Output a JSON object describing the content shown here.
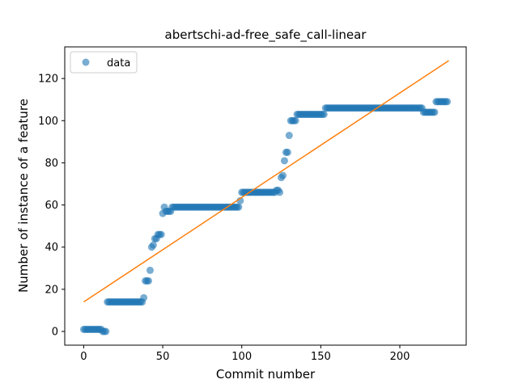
{
  "chart_data": {
    "type": "scatter",
    "title": "abertschi-ad-free_safe_call-linear",
    "xlabel": "Commit number",
    "ylabel": "Number of instance of a feature",
    "xlim": [
      -12,
      242
    ],
    "ylim": [
      -6.5,
      135
    ],
    "xticks": [
      0,
      50,
      100,
      150,
      200
    ],
    "yticks": [
      0,
      20,
      40,
      60,
      80,
      100,
      120
    ],
    "legend": {
      "position": "top-left",
      "entries": [
        "data"
      ]
    },
    "colors": {
      "data": "#1f77b4",
      "fit": "#ff7f0e"
    },
    "series": [
      {
        "name": "data",
        "kind": "scatter",
        "points": [
          [
            0,
            1
          ],
          [
            1,
            1
          ],
          [
            2,
            1
          ],
          [
            3,
            1
          ],
          [
            4,
            1
          ],
          [
            5,
            1
          ],
          [
            6,
            1
          ],
          [
            7,
            1
          ],
          [
            8,
            1
          ],
          [
            9,
            1
          ],
          [
            10,
            1
          ],
          [
            11,
            1
          ],
          [
            12,
            0
          ],
          [
            13,
            0
          ],
          [
            14,
            0
          ],
          [
            15,
            14
          ],
          [
            16,
            14
          ],
          [
            17,
            14
          ],
          [
            18,
            14
          ],
          [
            19,
            14
          ],
          [
            20,
            14
          ],
          [
            21,
            14
          ],
          [
            22,
            14
          ],
          [
            23,
            14
          ],
          [
            24,
            14
          ],
          [
            25,
            14
          ],
          [
            26,
            14
          ],
          [
            27,
            14
          ],
          [
            28,
            14
          ],
          [
            29,
            14
          ],
          [
            30,
            14
          ],
          [
            31,
            14
          ],
          [
            32,
            14
          ],
          [
            33,
            14
          ],
          [
            34,
            14
          ],
          [
            35,
            14
          ],
          [
            36,
            14
          ],
          [
            37,
            14
          ],
          [
            38,
            16
          ],
          [
            39,
            24
          ],
          [
            40,
            24
          ],
          [
            41,
            24
          ],
          [
            42,
            29
          ],
          [
            43,
            40
          ],
          [
            44,
            41
          ],
          [
            45,
            44
          ],
          [
            46,
            44
          ],
          [
            47,
            46
          ],
          [
            48,
            46
          ],
          [
            49,
            46
          ],
          [
            50,
            56
          ],
          [
            51,
            59
          ],
          [
            52,
            57
          ],
          [
            53,
            57
          ],
          [
            54,
            57
          ],
          [
            55,
            57
          ],
          [
            56,
            59
          ],
          [
            57,
            59
          ],
          [
            58,
            59
          ],
          [
            59,
            59
          ],
          [
            60,
            59
          ],
          [
            61,
            59
          ],
          [
            62,
            59
          ],
          [
            63,
            59
          ],
          [
            64,
            59
          ],
          [
            65,
            59
          ],
          [
            66,
            59
          ],
          [
            67,
            59
          ],
          [
            68,
            59
          ],
          [
            69,
            59
          ],
          [
            70,
            59
          ],
          [
            71,
            59
          ],
          [
            72,
            59
          ],
          [
            73,
            59
          ],
          [
            74,
            59
          ],
          [
            75,
            59
          ],
          [
            76,
            59
          ],
          [
            77,
            59
          ],
          [
            78,
            59
          ],
          [
            79,
            59
          ],
          [
            80,
            59
          ],
          [
            81,
            59
          ],
          [
            82,
            59
          ],
          [
            83,
            59
          ],
          [
            84,
            59
          ],
          [
            85,
            59
          ],
          [
            86,
            59
          ],
          [
            87,
            59
          ],
          [
            88,
            59
          ],
          [
            89,
            59
          ],
          [
            90,
            59
          ],
          [
            91,
            59
          ],
          [
            92,
            59
          ],
          [
            93,
            59
          ],
          [
            94,
            59
          ],
          [
            95,
            59
          ],
          [
            96,
            59
          ],
          [
            97,
            59
          ],
          [
            98,
            59
          ],
          [
            99,
            62
          ],
          [
            100,
            66
          ],
          [
            101,
            66
          ],
          [
            102,
            66
          ],
          [
            103,
            66
          ],
          [
            104,
            66
          ],
          [
            105,
            66
          ],
          [
            106,
            66
          ],
          [
            107,
            66
          ],
          [
            108,
            66
          ],
          [
            109,
            66
          ],
          [
            110,
            66
          ],
          [
            111,
            66
          ],
          [
            112,
            66
          ],
          [
            113,
            66
          ],
          [
            114,
            66
          ],
          [
            115,
            66
          ],
          [
            116,
            66
          ],
          [
            117,
            66
          ],
          [
            118,
            66
          ],
          [
            119,
            66
          ],
          [
            120,
            66
          ],
          [
            121,
            66
          ],
          [
            122,
            67
          ],
          [
            123,
            67
          ],
          [
            124,
            66
          ],
          [
            125,
            73
          ],
          [
            126,
            74
          ],
          [
            127,
            81
          ],
          [
            128,
            85
          ],
          [
            129,
            85
          ],
          [
            130,
            93
          ],
          [
            131,
            100
          ],
          [
            132,
            100
          ],
          [
            133,
            100
          ],
          [
            134,
            100
          ],
          [
            135,
            103
          ],
          [
            136,
            103
          ],
          [
            137,
            103
          ],
          [
            138,
            103
          ],
          [
            139,
            103
          ],
          [
            140,
            103
          ],
          [
            141,
            103
          ],
          [
            142,
            103
          ],
          [
            143,
            103
          ],
          [
            144,
            103
          ],
          [
            145,
            103
          ],
          [
            146,
            103
          ],
          [
            147,
            103
          ],
          [
            148,
            103
          ],
          [
            149,
            103
          ],
          [
            150,
            103
          ],
          [
            151,
            103
          ],
          [
            152,
            103
          ],
          [
            153,
            106
          ],
          [
            154,
            106
          ],
          [
            155,
            106
          ],
          [
            156,
            106
          ],
          [
            157,
            106
          ],
          [
            158,
            106
          ],
          [
            159,
            106
          ],
          [
            160,
            106
          ],
          [
            161,
            106
          ],
          [
            162,
            106
          ],
          [
            163,
            106
          ],
          [
            164,
            106
          ],
          [
            165,
            106
          ],
          [
            166,
            106
          ],
          [
            167,
            106
          ],
          [
            168,
            106
          ],
          [
            169,
            106
          ],
          [
            170,
            106
          ],
          [
            171,
            106
          ],
          [
            172,
            106
          ],
          [
            173,
            106
          ],
          [
            174,
            106
          ],
          [
            175,
            106
          ],
          [
            176,
            106
          ],
          [
            177,
            106
          ],
          [
            178,
            106
          ],
          [
            179,
            106
          ],
          [
            180,
            106
          ],
          [
            181,
            106
          ],
          [
            182,
            106
          ],
          [
            183,
            106
          ],
          [
            184,
            106
          ],
          [
            185,
            106
          ],
          [
            186,
            106
          ],
          [
            187,
            106
          ],
          [
            188,
            106
          ],
          [
            189,
            106
          ],
          [
            190,
            106
          ],
          [
            191,
            106
          ],
          [
            192,
            106
          ],
          [
            193,
            106
          ],
          [
            194,
            106
          ],
          [
            195,
            106
          ],
          [
            196,
            106
          ],
          [
            197,
            106
          ],
          [
            198,
            106
          ],
          [
            199,
            106
          ],
          [
            200,
            106
          ],
          [
            201,
            106
          ],
          [
            202,
            106
          ],
          [
            203,
            106
          ],
          [
            204,
            106
          ],
          [
            205,
            106
          ],
          [
            206,
            106
          ],
          [
            207,
            106
          ],
          [
            208,
            106
          ],
          [
            209,
            106
          ],
          [
            210,
            106
          ],
          [
            211,
            106
          ],
          [
            212,
            106
          ],
          [
            213,
            106
          ],
          [
            214,
            106
          ],
          [
            215,
            104
          ],
          [
            216,
            104
          ],
          [
            217,
            104
          ],
          [
            218,
            104
          ],
          [
            219,
            104
          ],
          [
            220,
            104
          ],
          [
            221,
            104
          ],
          [
            222,
            104
          ],
          [
            223,
            109
          ],
          [
            224,
            109
          ],
          [
            225,
            109
          ],
          [
            226,
            109
          ],
          [
            227,
            109
          ],
          [
            228,
            109
          ],
          [
            229,
            109
          ],
          [
            230,
            109
          ]
        ]
      },
      {
        "kind": "line",
        "points": [
          [
            0,
            14
          ],
          [
            231,
            128.5
          ]
        ]
      }
    ]
  }
}
